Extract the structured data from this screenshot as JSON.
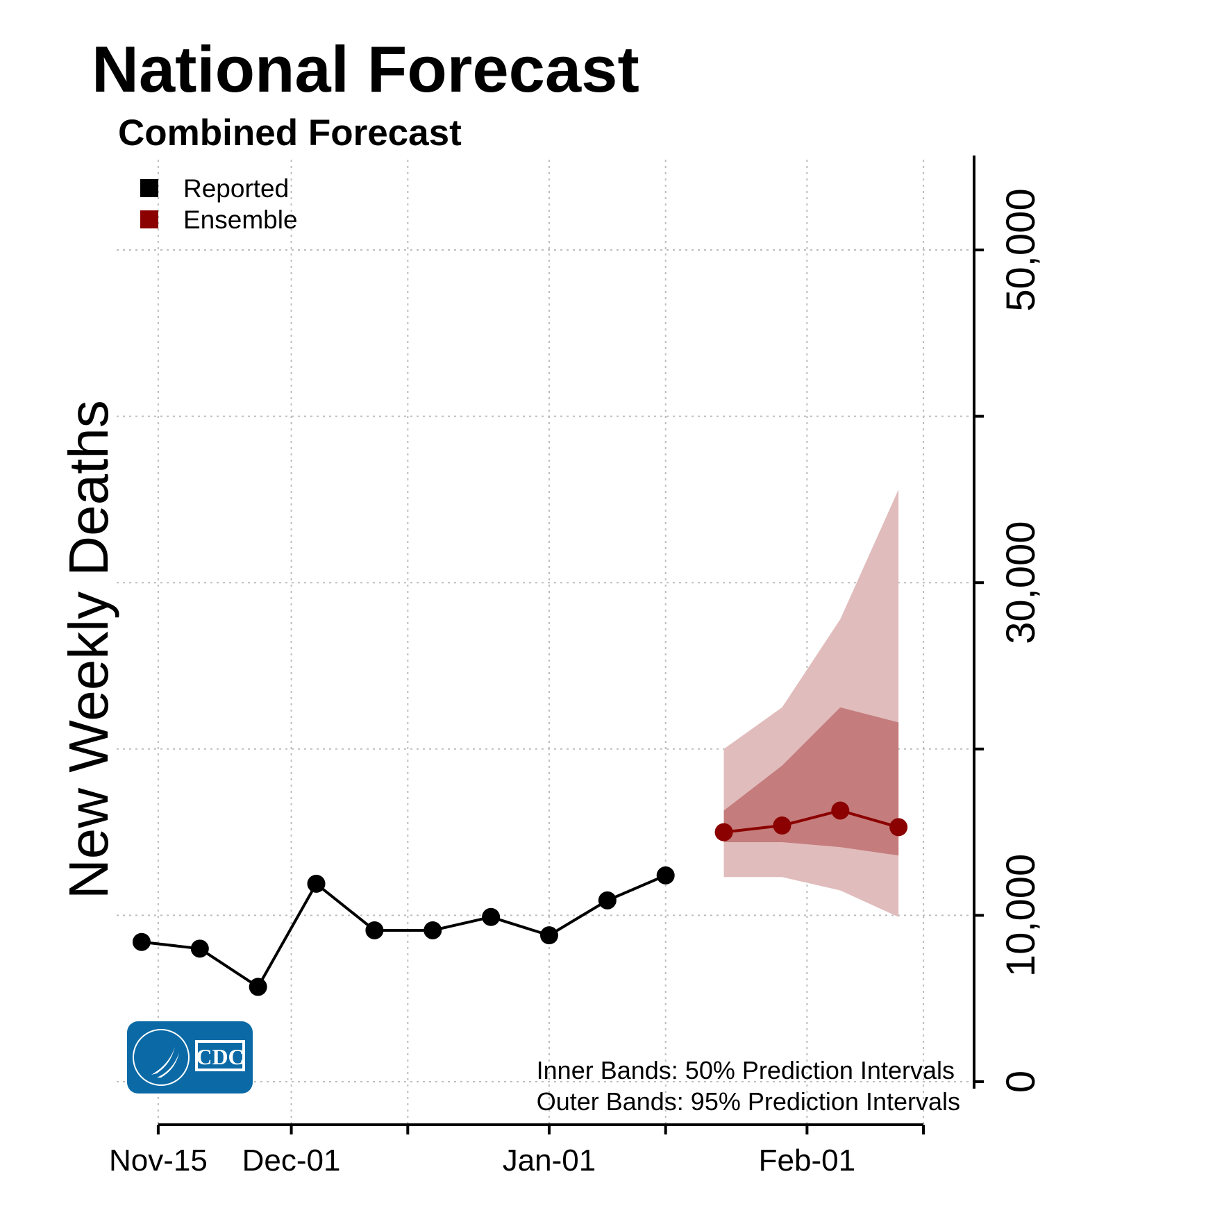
{
  "chart_data": {
    "type": "line",
    "title": "National Forecast",
    "subtitle": "Combined Forecast",
    "xlabel": "",
    "ylabel": "New Weekly Deaths",
    "x_axis": {
      "type": "date",
      "range": [
        "2020-11-10",
        "2021-02-20"
      ],
      "ticks": [
        {
          "date": "2020-11-15",
          "label": "Nov-15"
        },
        {
          "date": "2020-12-01",
          "label": "Dec-01"
        },
        {
          "date": "2020-12-15",
          "label": ""
        },
        {
          "date": "2021-01-01",
          "label": "Jan-01"
        },
        {
          "date": "2021-01-15",
          "label": ""
        },
        {
          "date": "2021-02-01",
          "label": "Feb-01"
        },
        {
          "date": "2021-02-15",
          "label": ""
        }
      ]
    },
    "y_axis": {
      "position": "right",
      "ylim": [
        -1000,
        55500
      ],
      "ticks": [
        0,
        10000,
        20000,
        30000,
        40000,
        50000
      ],
      "tick_labels": [
        "0",
        "10,000",
        "",
        "30,000",
        "",
        "50,000"
      ]
    },
    "grid": true,
    "legend": {
      "placement": "top-left",
      "items": [
        {
          "label": "Reported",
          "color": "#000000"
        },
        {
          "label": "Ensemble",
          "color": "#8b0000"
        }
      ]
    },
    "series": [
      {
        "name": "Reported",
        "color": "#000000",
        "x": [
          "2020-11-13",
          "2020-11-20",
          "2020-11-27",
          "2020-12-04",
          "2020-12-11",
          "2020-12-18",
          "2020-12-25",
          "2021-01-01",
          "2021-01-08",
          "2021-01-15"
        ],
        "y": [
          8400,
          8000,
          5700,
          11900,
          9100,
          9100,
          9900,
          8800,
          10900,
          12400
        ]
      },
      {
        "name": "Ensemble",
        "color": "#8b0000",
        "x": [
          "2021-01-22",
          "2021-01-29",
          "2021-02-05",
          "2021-02-12"
        ],
        "y": [
          15000,
          15400,
          16300,
          15300
        ],
        "inner_band_50": {
          "lower": [
            14400,
            14400,
            14100,
            13600
          ],
          "upper": [
            16300,
            19000,
            22500,
            21600
          ]
        },
        "outer_band_95": {
          "lower": [
            12300,
            12300,
            11500,
            9900
          ],
          "upper": [
            20000,
            22500,
            27800,
            35600
          ]
        },
        "inner_band_color": "#c57c7c",
        "outer_band_color": "#e1bcbc"
      }
    ],
    "annotations": [
      "Inner Bands: 50% Prediction Intervals",
      "Outer Bands: 95% Prediction Intervals"
    ]
  },
  "logo": {
    "text": "CDC",
    "color": "#0b6aa6"
  }
}
